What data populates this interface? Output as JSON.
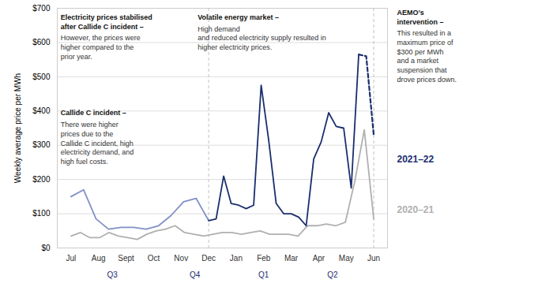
{
  "chart_data": {
    "type": "line",
    "ylabel": "Weekly average price per MWh",
    "xlim": [
      -0.5,
      11.5
    ],
    "xticks": [
      {
        "value": 0,
        "label": "Jul"
      },
      {
        "value": 1,
        "label": "Aug"
      },
      {
        "value": 2,
        "label": "Sept"
      },
      {
        "value": 3,
        "label": "Oct"
      },
      {
        "value": 4,
        "label": "Nov"
      },
      {
        "value": 5,
        "label": "Dec"
      },
      {
        "value": 6,
        "label": "Jan"
      },
      {
        "value": 7,
        "label": "Feb"
      },
      {
        "value": 8,
        "label": "Mar"
      },
      {
        "value": 9,
        "label": "Apr"
      },
      {
        "value": 10,
        "label": "May"
      },
      {
        "value": 11,
        "label": "Jun"
      }
    ],
    "ylim": [
      0,
      700
    ],
    "yticks": [
      {
        "value": 0,
        "label": "$0"
      },
      {
        "value": 100,
        "label": "$100"
      },
      {
        "value": 200,
        "label": "$200"
      },
      {
        "value": 300,
        "label": "$300"
      },
      {
        "value": 400,
        "label": "$400"
      },
      {
        "value": 500,
        "label": "$500"
      },
      {
        "value": 600,
        "label": "$600"
      },
      {
        "value": 700,
        "label": "$700"
      }
    ],
    "grid": true,
    "vlines": [
      5.0,
      11.0
    ],
    "period_labels": [
      {
        "label": "Q3",
        "x": 1.5
      },
      {
        "label": "Q4",
        "x": 4.5
      },
      {
        "label": "Q1",
        "x": 7.0
      },
      {
        "label": "Q2",
        "x": 9.5
      }
    ],
    "series": [
      {
        "name": "2020–21",
        "color": "#b0b0b0",
        "line_style": "solid",
        "x": [
          0,
          0.34375,
          0.6875,
          1.03125,
          1.375,
          1.71875,
          2.0625,
          2.40625,
          2.75,
          3.09375,
          3.4375,
          3.78125,
          4.125,
          4.46875,
          4.8125,
          5.15625,
          5.5,
          5.84375,
          6.1875,
          6.53125,
          6.875,
          7.21875,
          7.5625,
          7.90625,
          8.25,
          8.59375,
          8.9375,
          9.28125,
          9.625,
          9.96875,
          10.3125,
          10.65625,
          11
        ],
        "values": [
          35,
          45,
          30,
          30,
          45,
          35,
          30,
          25,
          40,
          50,
          55,
          65,
          45,
          40,
          35,
          40,
          45,
          45,
          40,
          45,
          50,
          40,
          40,
          40,
          35,
          65,
          65,
          70,
          65,
          75,
          195,
          345,
          85
        ]
      },
      {
        "name": "2021–22",
        "color": "#8090c8",
        "line_style": "solid",
        "x": [
          0,
          0.4545454545,
          0.9090909091,
          1.3636363636,
          1.8181818182,
          2.2727272727,
          2.7272727273,
          3.1818181818,
          3.6363636364,
          4.0909090909,
          4.5454545455,
          5
        ],
        "values": [
          150,
          170,
          85,
          55,
          60,
          60,
          55,
          65,
          95,
          135,
          145,
          80
        ]
      },
      {
        "name": "2021–22",
        "color": "#1a2e6e",
        "line_style": "solid",
        "x": [
          5,
          5.2727272727,
          5.5454545455,
          5.8181818182,
          6.0909090909,
          6.3636363636,
          6.6363636364,
          6.9090909091,
          7.1818181818,
          7.4545454545,
          7.7272727273,
          8,
          8.2727272727,
          8.5454545455,
          8.8181818182,
          9.0909090909,
          9.3636363636,
          9.6363636364,
          9.9090909091,
          10.1818181818,
          10.4545454545
        ],
        "values": [
          80,
          85,
          210,
          130,
          125,
          115,
          125,
          475,
          315,
          130,
          100,
          100,
          90,
          65,
          260,
          310,
          395,
          355,
          350,
          175,
          565
        ]
      },
      {
        "name": "2021–22",
        "color": "#1a2e6e",
        "line_style": "dashed",
        "x": [
          10.4545454545,
          10.7272727273,
          11
        ],
        "values": [
          565,
          560,
          330
        ]
      }
    ],
    "annotations": [
      {
        "heading": "Electricity prices stabilised\nafter Callide C incident –",
        "text": "However, the prices were\nhigher compared to the\nprior year."
      },
      {
        "heading": "Callide C incident –",
        "text": "There were higher\nprices due to the\nCallide C incident, high\nelectricity demand, and\nhigh fuel costs."
      },
      {
        "heading": "Volatile energy market –",
        "text": "High demand\nand reduced electricity supply resulted in\nhigher electricity prices."
      },
      {
        "heading": "AEMO’s\nintervention –",
        "text": "This resulted in a\nmaximum price of\n$300 per MWh\nand a market\nsuspension that\ndrove prices down."
      }
    ]
  }
}
